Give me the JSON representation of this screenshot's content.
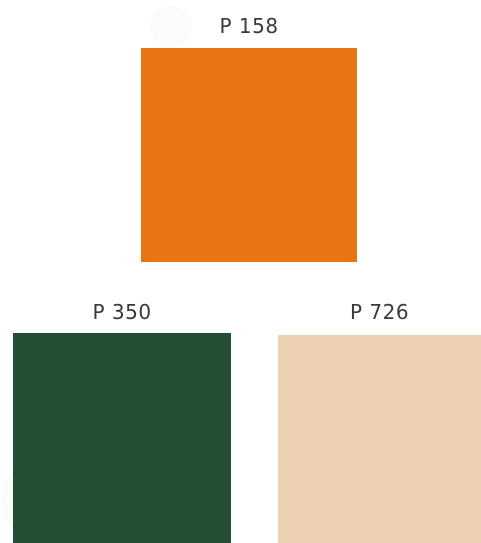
{
  "swatches": [
    {
      "label": "P 158",
      "color": "#e87511"
    },
    {
      "label": "P 350",
      "color": "#234e33"
    },
    {
      "label": "P 726",
      "color": "#ecd2b3"
    }
  ]
}
